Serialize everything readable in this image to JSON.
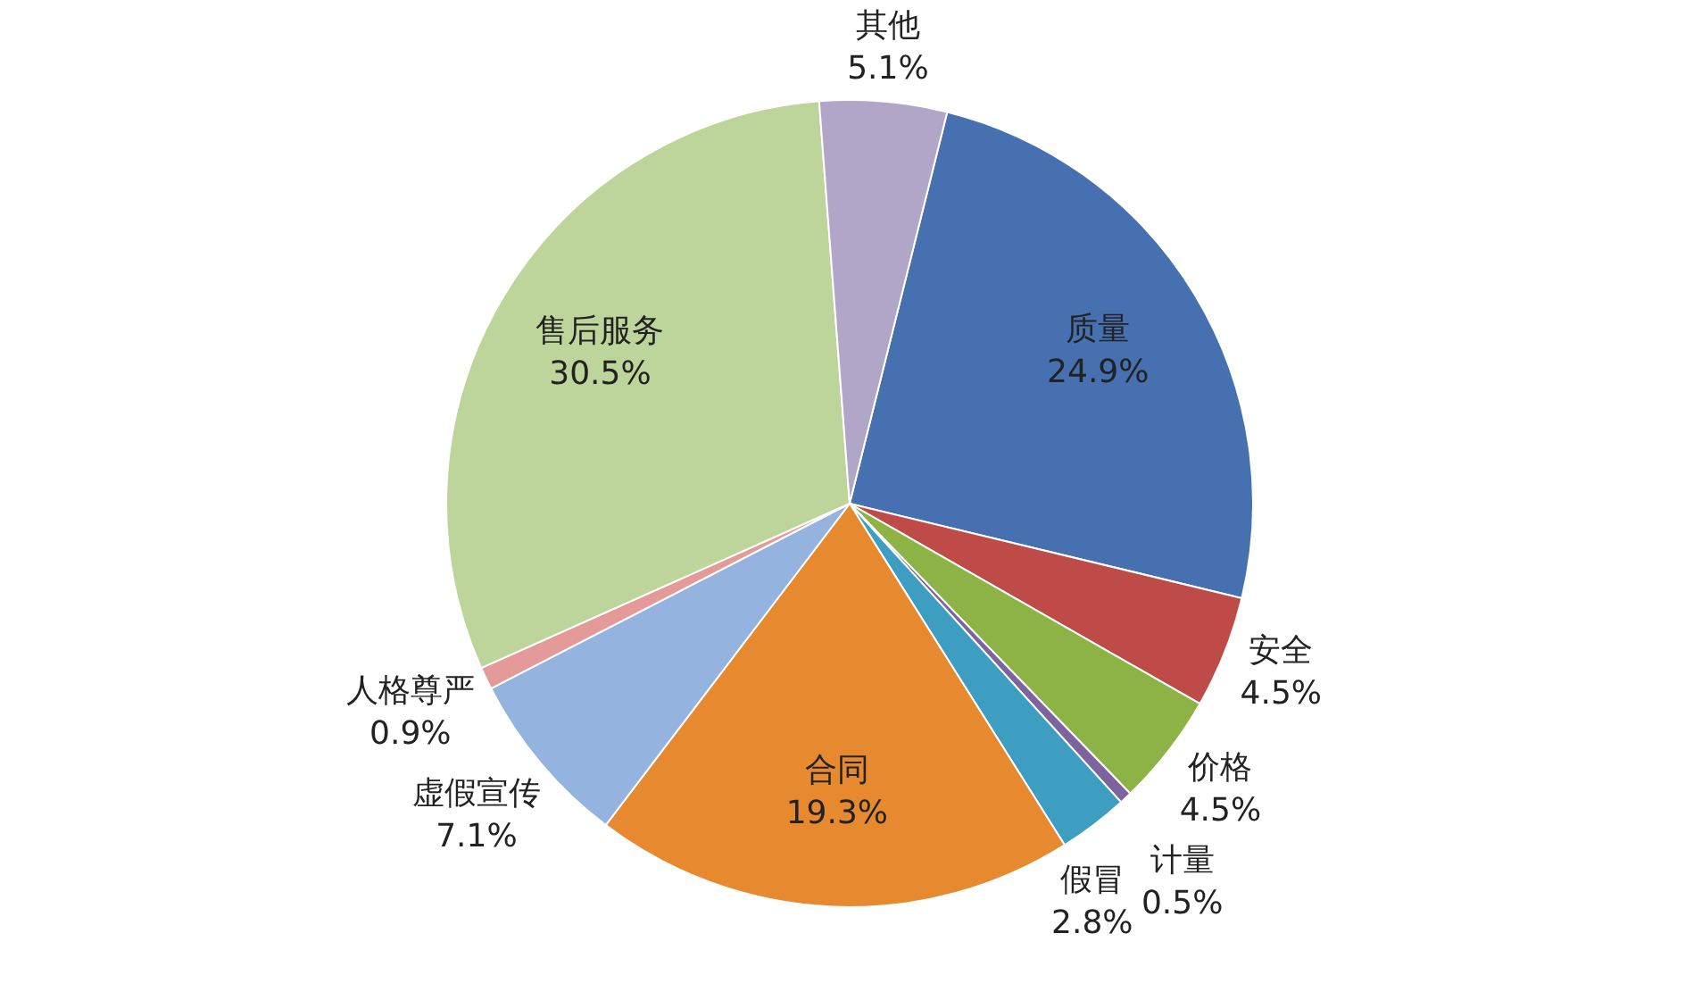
{
  "chart_data": {
    "type": "pie",
    "categories": [
      "质量",
      "安全",
      "价格",
      "计量",
      "假冒",
      "合同",
      "虚假宣传",
      "人格尊严",
      "售后服务",
      "其他"
    ],
    "values": [
      24.9,
      4.5,
      4.5,
      0.5,
      2.8,
      19.3,
      7.1,
      0.9,
      30.5,
      5.1
    ],
    "colors": [
      "#4670b0",
      "#be4b48",
      "#8db346",
      "#7e649e",
      "#3d9ec2",
      "#e7892f",
      "#94b3de",
      "#e39a98",
      "#bdd59b",
      "#b1a6c8"
    ],
    "value_labels": [
      "24.9%",
      "4.5%",
      "4.5%",
      "0.5%",
      "2.8%",
      "19.3%",
      "7.1%",
      "0.9%",
      "30.5%",
      "5.1%"
    ]
  }
}
